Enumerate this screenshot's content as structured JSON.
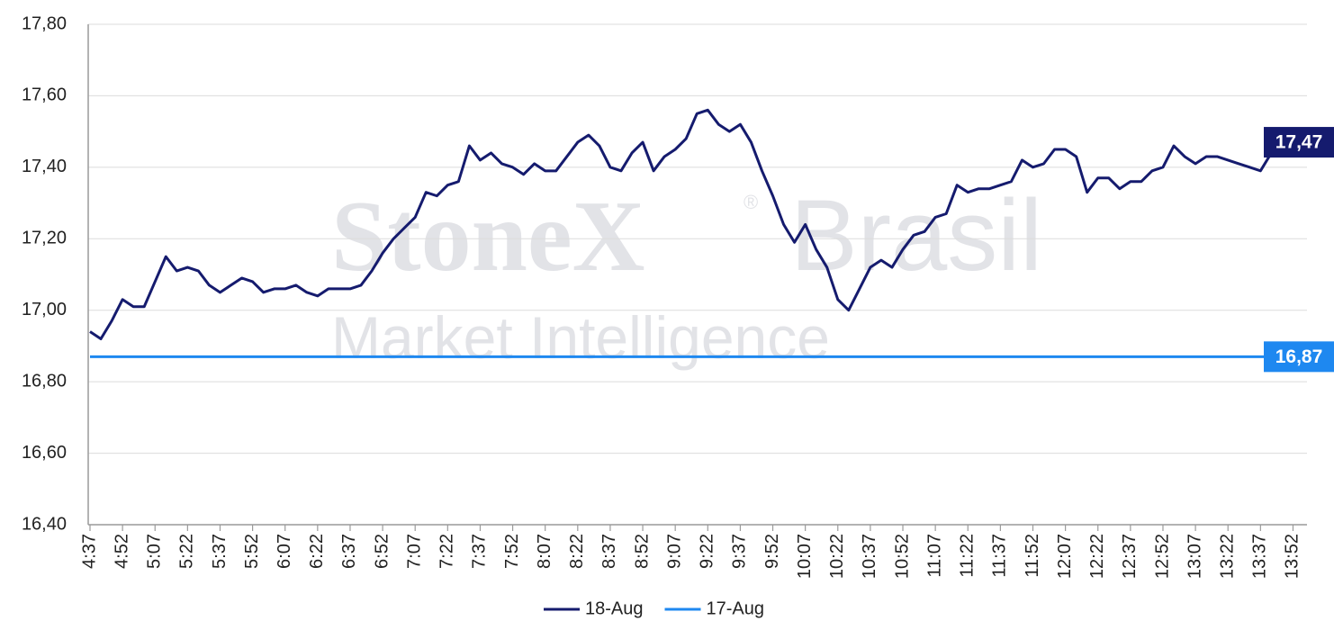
{
  "chart_data": {
    "type": "line",
    "watermark": {
      "brand": "StoneX",
      "registered": "®",
      "region": "Brasil",
      "unit": "Market Intelligence"
    },
    "categories": [
      "4:37",
      null,
      null,
      "4:52",
      null,
      null,
      "5:07",
      null,
      null,
      "5:22",
      null,
      null,
      "5:37",
      null,
      null,
      "5:52",
      null,
      null,
      "6:07",
      null,
      null,
      "6:22",
      null,
      null,
      "6:37",
      null,
      null,
      "6:52",
      null,
      null,
      "7:07",
      null,
      null,
      "7:22",
      null,
      null,
      "7:37",
      null,
      null,
      "7:52",
      null,
      null,
      "8:07",
      null,
      null,
      "8:22",
      null,
      null,
      "8:37",
      null,
      null,
      "8:52",
      null,
      null,
      "9:07",
      null,
      null,
      "9:22",
      null,
      null,
      "9:37",
      null,
      null,
      "9:52",
      null,
      null,
      "10:07",
      null,
      null,
      "10:22",
      null,
      null,
      "10:37",
      null,
      null,
      "10:52",
      null,
      null,
      "11:07",
      null,
      null,
      "11:22",
      null,
      null,
      "11:37",
      null,
      null,
      "11:52",
      null,
      null,
      "12:07",
      null,
      null,
      "12:22",
      null,
      null,
      "12:37",
      null,
      null,
      "12:52",
      null,
      null,
      "13:07",
      null,
      null,
      "13:22",
      null,
      null,
      "13:37",
      null,
      null,
      "13:52",
      null
    ],
    "series": [
      {
        "name": "18-Aug",
        "color": "#151b6e",
        "values": [
          16.94,
          16.92,
          16.97,
          17.03,
          17.01,
          17.01,
          17.08,
          17.15,
          17.11,
          17.12,
          17.11,
          17.07,
          17.05,
          17.07,
          17.09,
          17.08,
          17.05,
          17.06,
          17.06,
          17.07,
          17.05,
          17.04,
          17.06,
          17.06,
          17.06,
          17.07,
          17.11,
          17.16,
          17.2,
          17.23,
          17.26,
          17.33,
          17.32,
          17.35,
          17.36,
          17.46,
          17.42,
          17.44,
          17.41,
          17.4,
          17.38,
          17.41,
          17.39,
          17.39,
          17.43,
          17.47,
          17.49,
          17.46,
          17.4,
          17.39,
          17.44,
          17.47,
          17.39,
          17.43,
          17.45,
          17.48,
          17.55,
          17.56,
          17.52,
          17.5,
          17.52,
          17.47,
          17.39,
          17.32,
          17.24,
          17.19,
          17.24,
          17.17,
          17.12,
          17.03,
          17.0,
          17.06,
          17.12,
          17.14,
          17.12,
          17.17,
          17.21,
          17.22,
          17.26,
          17.27,
          17.35,
          17.33,
          17.34,
          17.34,
          17.35,
          17.36,
          17.42,
          17.4,
          17.41,
          17.45,
          17.45,
          17.43,
          17.33,
          17.37,
          17.37,
          17.34,
          17.36,
          17.36,
          17.39,
          17.4,
          17.46,
          17.43,
          17.41,
          17.43,
          17.43,
          17.42,
          17.41,
          17.4,
          17.39,
          17.44,
          17.46,
          17.47,
          17.47
        ],
        "value_labels": [
          null,
          null,
          null,
          null,
          null,
          null,
          null,
          null,
          null,
          null,
          null,
          null,
          null,
          null,
          null,
          null,
          null,
          null,
          null,
          null,
          null,
          null,
          null,
          null,
          null,
          null,
          null,
          null,
          null,
          null,
          null,
          null,
          null,
          null,
          null,
          null,
          null,
          null,
          null,
          null,
          null,
          null,
          null,
          null,
          null,
          null,
          null,
          null,
          null,
          null,
          null,
          null,
          null,
          null,
          null,
          null,
          null,
          null,
          null,
          null,
          null,
          null,
          null,
          null,
          null,
          null,
          null,
          null,
          null,
          null,
          null,
          null,
          null,
          null,
          null,
          null,
          null,
          null,
          null,
          null,
          null,
          null,
          null,
          null,
          null,
          null,
          null,
          null,
          null,
          null,
          null,
          null,
          null,
          null,
          null,
          null,
          null,
          null,
          null,
          null,
          null,
          null,
          null,
          null,
          null,
          null,
          null,
          null,
          null,
          null,
          null,
          null,
          "17,47"
        ]
      },
      {
        "name": "17-Aug",
        "color": "#1e88f0",
        "values": [
          16.87,
          16.87,
          16.87,
          16.87,
          16.87,
          16.87,
          16.87,
          16.87,
          16.87,
          16.87,
          16.87,
          16.87,
          16.87,
          16.87,
          16.87,
          16.87,
          16.87,
          16.87,
          16.87,
          16.87,
          16.87,
          16.87,
          16.87,
          16.87,
          16.87,
          16.87,
          16.87,
          16.87,
          16.87,
          16.87,
          16.87,
          16.87,
          16.87,
          16.87,
          16.87,
          16.87,
          16.87,
          16.87,
          16.87,
          16.87,
          16.87,
          16.87,
          16.87,
          16.87,
          16.87,
          16.87,
          16.87,
          16.87,
          16.87,
          16.87,
          16.87,
          16.87,
          16.87,
          16.87,
          16.87,
          16.87,
          16.87,
          16.87,
          16.87,
          16.87,
          16.87,
          16.87,
          16.87,
          16.87,
          16.87,
          16.87,
          16.87,
          16.87,
          16.87,
          16.87,
          16.87,
          16.87,
          16.87,
          16.87,
          16.87,
          16.87,
          16.87,
          16.87,
          16.87,
          16.87,
          16.87,
          16.87,
          16.87,
          16.87,
          16.87,
          16.87,
          16.87,
          16.87,
          16.87,
          16.87,
          16.87,
          16.87,
          16.87,
          16.87,
          16.87,
          16.87,
          16.87,
          16.87,
          16.87,
          16.87,
          16.87,
          16.87,
          16.87,
          16.87,
          16.87,
          16.87,
          16.87,
          16.87,
          16.87,
          16.87,
          16.87,
          16.87,
          16.87
        ],
        "value_labels": [
          null,
          null,
          null,
          null,
          null,
          null,
          null,
          null,
          null,
          null,
          null,
          null,
          null,
          null,
          null,
          null,
          null,
          null,
          null,
          null,
          null,
          null,
          null,
          null,
          null,
          null,
          null,
          null,
          null,
          null,
          null,
          null,
          null,
          null,
          null,
          null,
          null,
          null,
          null,
          null,
          null,
          null,
          null,
          null,
          null,
          null,
          null,
          null,
          null,
          null,
          null,
          null,
          null,
          null,
          null,
          null,
          null,
          null,
          null,
          null,
          null,
          null,
          null,
          null,
          null,
          null,
          null,
          null,
          null,
          null,
          null,
          null,
          null,
          null,
          null,
          null,
          null,
          null,
          null,
          null,
          null,
          null,
          null,
          null,
          null,
          null,
          null,
          null,
          null,
          null,
          null,
          null,
          null,
          null,
          null,
          null,
          null,
          null,
          null,
          null,
          null,
          null,
          null,
          null,
          null,
          null,
          null,
          null,
          null,
          null,
          null,
          null,
          "16,87"
        ]
      }
    ],
    "ylim": [
      16.4,
      17.8
    ],
    "yticks": [
      {
        "value": 16.4,
        "label": "16,40"
      },
      {
        "value": 16.6,
        "label": "16,60"
      },
      {
        "value": 16.8,
        "label": "16,80"
      },
      {
        "value": 17.0,
        "label": "17,00"
      },
      {
        "value": 17.2,
        "label": "17,20"
      },
      {
        "value": 17.4,
        "label": "17,40"
      },
      {
        "value": 17.6,
        "label": "17,60"
      },
      {
        "value": 17.8,
        "label": "17,80"
      }
    ],
    "grid": true,
    "legend": "bottom"
  }
}
